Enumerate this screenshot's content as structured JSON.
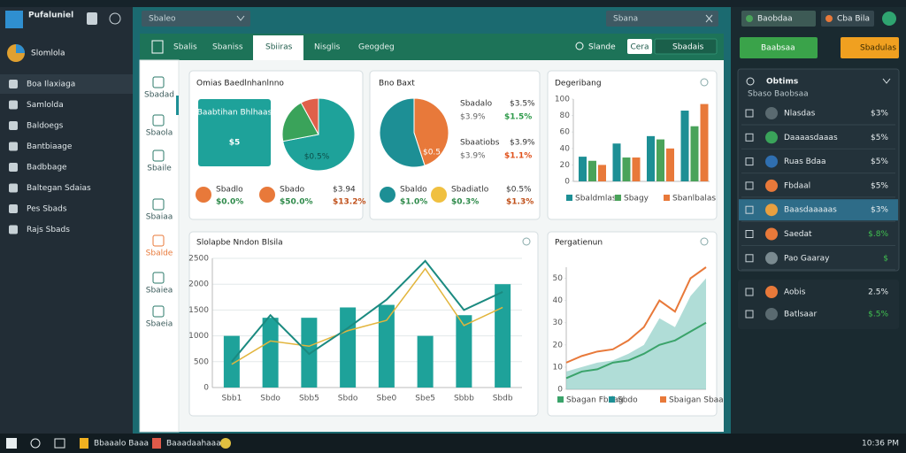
{
  "sidebar": {
    "app": "Pufaluniel",
    "brand": "Slomlola",
    "menu": [
      "Boa Ilaxiaga",
      "Samlolda",
      "Baldoegs",
      "Bantbiaage",
      "Badbbage",
      "Baltegan Sdaias",
      "Pes Sbads",
      "Rajs Sbads"
    ]
  },
  "topbar": {
    "search": "Sbaleo",
    "search2": "Sbana"
  },
  "tabs": [
    "Sbalis",
    "Sbaniss",
    "Sbiiras",
    "Nisglis",
    "Geogdeg"
  ],
  "toolbar": {
    "search": "Slande",
    "button": "Cera",
    "action": "Sbadais"
  },
  "rail": [
    "Sbadad",
    "Sbaola",
    "Sbaile",
    "Sbaiaa",
    "Sbalde",
    "Sbaiea",
    "Sbaeia"
  ],
  "card1": {
    "title": "Omias Baedlnhanlnno",
    "box_label": "Baabtihan Bhlhaas",
    "big": "$5",
    "pie_label": "$0.5%",
    "pie": [
      72,
      20,
      8
    ],
    "stats": [
      {
        "label": "Sbadlo",
        "value": "$0.0%"
      },
      {
        "label": "Sbado",
        "value": "$50.0%"
      },
      {
        "label": "$3.94",
        "value": "$13.2%"
      }
    ]
  },
  "card2": {
    "title": "Bno Baxt",
    "pie_label": "$0.5",
    "pie": [
      45,
      55
    ],
    "rows": [
      {
        "label": "Sbadalo",
        "value": "$3.5%",
        "sub": "$3.9%",
        "change": "$1.5%"
      },
      {
        "label": "Sbaatiobs",
        "value": "$3.9%",
        "sub": "$3.9%",
        "change": "$1.1%"
      }
    ],
    "stats": [
      {
        "label": "Sbaldo",
        "value": "$1.0%"
      },
      {
        "label": "Sbadiatlo",
        "value": "$0.3%"
      },
      {
        "label": "$0.5%",
        "value": "$1.3%"
      }
    ]
  },
  "card3": {
    "title": "Degeribang",
    "ylim": [
      0,
      100
    ],
    "yticks": [
      0,
      20,
      40,
      60,
      80,
      100
    ],
    "series": [
      {
        "name": "Sbaldmlas",
        "color": "#1d8f95",
        "values": [
          30,
          46,
          55,
          86
        ]
      },
      {
        "name": "Sbagy",
        "color": "#4aa35a",
        "values": [
          25,
          29,
          51,
          67
        ]
      },
      {
        "name": "Sbanlbalas",
        "color": "#e8793a",
        "values": [
          20,
          29,
          40,
          94
        ]
      }
    ]
  },
  "card4": {
    "title": "Slolapbe Nndon Blsila",
    "categories": [
      "Sbb1",
      "Sbdo",
      "Sbb5",
      "Sbdo",
      "Sbe0",
      "Sbe5",
      "Sbbb",
      "Sbdb"
    ],
    "ylim": [
      0,
      2500
    ],
    "yticks": [
      0,
      500,
      1000,
      1500,
      2000,
      2500
    ],
    "bars": {
      "color": "#1ea29a",
      "values": [
        1000,
        1350,
        1350,
        1550,
        1600,
        1000,
        1400,
        2000
      ]
    },
    "line": {
      "color": "#1b8a80",
      "values": [
        500,
        1400,
        650,
        1150,
        1700,
        2450,
        1500,
        1850
      ]
    },
    "curve": {
      "color": "#e2b53c",
      "values": [
        450,
        900,
        800,
        1100,
        1300,
        2300,
        1200,
        1550
      ]
    }
  },
  "card5": {
    "title": "Pergatienun",
    "ylim": [
      0,
      55
    ],
    "yticks": [
      0,
      10,
      20,
      30,
      40,
      50
    ],
    "series": [
      {
        "name": "Sbagan Fbdag",
        "color": "#3aa36a",
        "values": [
          5,
          8,
          9,
          12,
          13,
          16,
          20,
          22,
          26,
          30
        ]
      },
      {
        "name": "Sbdo",
        "color": "#1d8f95",
        "values": [
          8,
          10,
          12,
          13,
          16,
          20,
          32,
          28,
          42,
          50
        ]
      },
      {
        "name": "Sbaigan Sbaa",
        "color": "#e8793a",
        "values": [
          12,
          15,
          17,
          18,
          22,
          28,
          40,
          35,
          50,
          55
        ]
      }
    ]
  },
  "right": {
    "btn1": "Baobdaa",
    "btn2": "Cba Bila",
    "green_btn": "Baabsaa",
    "orange_btn": "Sbadulas",
    "panel_title": "Obtims",
    "panel_sub": "Sbaso Baobsaa",
    "rows": [
      {
        "name": "Nlasdas",
        "value": "$3%"
      },
      {
        "name": "Daaaasdaaas",
        "value": "$5%"
      },
      {
        "name": "Ruas Bdaa",
        "value": "$5%"
      },
      {
        "name": "Fbdaal",
        "value": "$5%"
      },
      {
        "name": "Baasdaaaaas",
        "value": "$3%"
      },
      {
        "name": "Saedat",
        "value": "$.8%"
      },
      {
        "name": "Pao Gaaray",
        "value": "$"
      }
    ],
    "rows2": [
      {
        "name": "Aobis",
        "value": "2.5%"
      },
      {
        "name": "Batlsaar",
        "value": "$.5%"
      }
    ]
  },
  "taskbar": {
    "apps": [
      "Bbaaalo Baaa",
      "Baaadaahaaa"
    ],
    "time": "10:36 PM"
  }
}
